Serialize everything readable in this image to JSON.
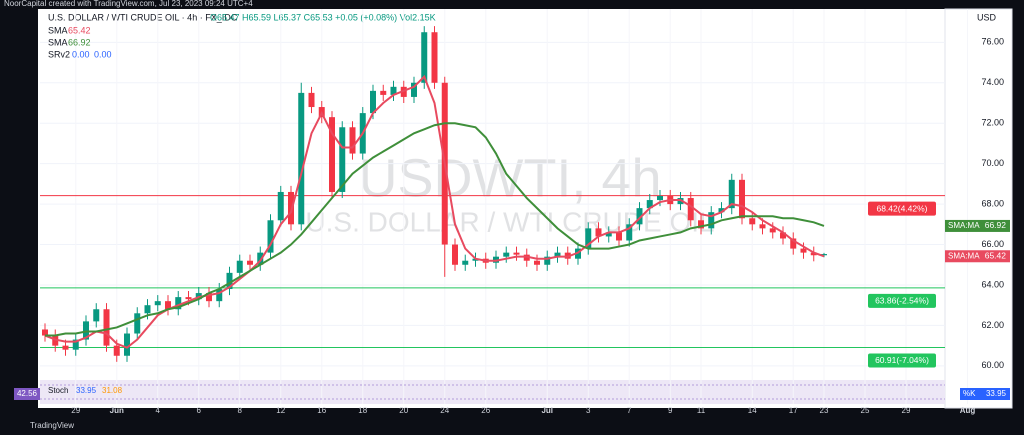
{
  "top_note": "NoorCapital created with TradingView.com, Jul 23, 2023 09:24 UTC+4",
  "footer_brand": "TradingView",
  "chart_data": {
    "type": "candlestick",
    "header": "U.S. DOLLAR / WTI CRUDE OIL · 4h · FX_IDC",
    "quote": "O65.47 H65.59 L65.37 C65.53 +0.05 (+0.08%) Vol2.15K",
    "watermark": {
      "title": "USDWTI, 4h",
      "subtitle": "U.S. DOLLAR / WTI CRUDE OIL"
    },
    "y_axis_label": "USD",
    "categories": [
      null,
      null,
      null,
      "29",
      null,
      null,
      null,
      "Jun",
      null,
      null,
      null,
      "4",
      null,
      null,
      null,
      "6",
      null,
      null,
      null,
      "8",
      null,
      null,
      null,
      "12",
      null,
      null,
      null,
      "16",
      null,
      null,
      null,
      "18",
      null,
      null,
      null,
      "20",
      null,
      null,
      null,
      "24",
      null,
      null,
      null,
      "26",
      null,
      null,
      null,
      null,
      null,
      "Jul",
      null,
      null,
      null,
      "3",
      null,
      null,
      null,
      "7",
      null,
      null,
      null,
      "9",
      null,
      null,
      "11",
      null,
      null,
      null,
      null,
      "14",
      null,
      null,
      null,
      "17",
      null,
      null,
      "23",
      null,
      null,
      null,
      "25",
      null,
      null,
      null,
      "29",
      null,
      null,
      null,
      null,
      null,
      "Aug"
    ],
    "open": [
      61.8,
      61.5,
      61.0,
      60.8,
      61.3,
      62.2,
      62.8,
      61.0,
      60.5,
      61.6,
      62.6,
      63.0,
      63.2,
      62.8,
      63.4,
      63.3,
      63.6,
      63.2,
      63.8,
      64.6,
      65.2,
      65.0,
      65.6,
      67.2,
      68.6,
      67.0,
      73.5,
      72.8,
      72.3,
      68.6,
      71.8,
      70.5,
      72.5,
      73.6,
      73.4,
      73.8,
      73.3,
      74.0,
      76.5,
      74.0,
      66.0,
      65.0,
      65.2,
      65.3,
      65.1,
      65.4,
      65.6,
      65.5,
      65.2,
      65.0,
      65.4,
      65.6,
      65.3,
      65.8,
      66.8,
      66.4,
      66.6,
      66.2,
      67.0,
      67.8,
      68.2,
      68.4,
      68.0,
      68.3,
      67.2,
      66.8,
      67.6,
      67.8,
      69.2,
      67.3,
      67.0,
      66.8,
      66.6,
      66.3,
      65.8,
      65.6,
      65.47,
      null,
      null,
      null,
      null,
      null,
      null,
      null,
      null,
      null,
      null,
      null,
      null,
      null,
      null
    ],
    "high": [
      62.1,
      61.8,
      61.3,
      61.6,
      62.5,
      63.1,
      63.1,
      61.3,
      61.9,
      62.9,
      63.3,
      63.5,
      63.5,
      63.7,
      63.7,
      63.9,
      63.9,
      64.1,
      64.9,
      65.5,
      65.5,
      65.9,
      67.5,
      68.9,
      68.9,
      74.0,
      73.8,
      73.1,
      72.6,
      72.1,
      72.1,
      72.8,
      73.9,
      73.9,
      74.1,
      74.1,
      74.3,
      76.8,
      76.8,
      74.3,
      66.3,
      65.5,
      65.6,
      65.6,
      65.7,
      65.9,
      65.9,
      65.8,
      65.5,
      65.7,
      65.9,
      65.9,
      66.1,
      67.1,
      67.1,
      66.9,
      66.9,
      67.3,
      68.1,
      68.5,
      68.7,
      68.7,
      68.6,
      68.6,
      67.5,
      67.9,
      68.1,
      69.5,
      69.5,
      67.6,
      67.3,
      67.1,
      66.9,
      66.6,
      66.1,
      65.9,
      65.59,
      null,
      null,
      null,
      null,
      null,
      null,
      null,
      null,
      null,
      null,
      null,
      null,
      null,
      null
    ],
    "low": [
      61.2,
      60.7,
      60.5,
      60.5,
      61.0,
      61.9,
      60.7,
      60.2,
      60.2,
      61.3,
      62.3,
      62.7,
      62.5,
      62.5,
      63.0,
      63.0,
      62.9,
      62.9,
      63.5,
      64.3,
      64.7,
      64.7,
      65.3,
      66.9,
      66.7,
      66.7,
      72.5,
      72.0,
      68.3,
      68.3,
      70.2,
      70.2,
      72.2,
      73.1,
      73.1,
      73.0,
      73.0,
      73.7,
      73.7,
      64.4,
      64.7,
      64.7,
      64.9,
      64.8,
      64.8,
      65.1,
      65.2,
      64.9,
      64.7,
      64.7,
      65.1,
      65.0,
      65.0,
      65.5,
      66.1,
      66.1,
      65.9,
      65.9,
      66.7,
      67.5,
      67.9,
      67.7,
      67.7,
      66.9,
      66.5,
      66.5,
      67.3,
      67.5,
      67.0,
      66.7,
      66.5,
      66.3,
      66.0,
      65.5,
      65.3,
      65.17,
      65.37,
      null,
      null,
      null,
      null,
      null,
      null,
      null,
      null,
      null,
      null,
      null,
      null,
      null,
      null
    ],
    "close": [
      61.5,
      61.0,
      60.8,
      61.3,
      62.2,
      62.8,
      61.0,
      60.5,
      61.6,
      62.6,
      63.0,
      63.2,
      62.8,
      63.4,
      63.3,
      63.6,
      63.2,
      63.8,
      64.6,
      65.2,
      65.0,
      65.6,
      67.2,
      68.6,
      67.0,
      73.5,
      72.8,
      72.3,
      68.6,
      71.8,
      70.5,
      72.5,
      73.6,
      73.4,
      73.8,
      73.3,
      74.0,
      76.5,
      74.0,
      66.0,
      65.0,
      65.2,
      65.3,
      65.1,
      65.4,
      65.6,
      65.5,
      65.2,
      65.0,
      65.4,
      65.6,
      65.3,
      65.8,
      66.8,
      66.4,
      66.6,
      66.2,
      67.0,
      67.8,
      68.2,
      68.4,
      68.0,
      68.3,
      67.2,
      66.8,
      67.6,
      67.8,
      69.2,
      67.3,
      67.0,
      66.8,
      66.6,
      66.3,
      65.8,
      65.6,
      65.47,
      65.53,
      null,
      null,
      null,
      null,
      null,
      null,
      null,
      null,
      null,
      null,
      null,
      null,
      null,
      null
    ],
    "up_color": "#089981",
    "down_color": "#f23645",
    "series": [
      {
        "name": "SMA",
        "tag": "SMA:MA",
        "color": "#e84a5f",
        "values": [
          61.5,
          61.3,
          61.2,
          61.2,
          61.4,
          61.7,
          61.6,
          61.1,
          60.9,
          61.3,
          61.9,
          62.5,
          62.8,
          63.0,
          63.2,
          63.4,
          63.5,
          63.6,
          63.9,
          64.3,
          64.7,
          65.2,
          66.0,
          67.0,
          67.6,
          69.5,
          71.5,
          72.5,
          71.5,
          70.8,
          70.8,
          71.5,
          72.5,
          73.0,
          73.4,
          73.6,
          73.8,
          74.3,
          73.0,
          70.0,
          67.0,
          65.8,
          65.3,
          65.2,
          65.2,
          65.3,
          65.4,
          65.4,
          65.3,
          65.3,
          65.4,
          65.4,
          65.6,
          66.0,
          66.4,
          66.6,
          66.6,
          66.8,
          67.3,
          67.8,
          68.1,
          68.2,
          68.2,
          67.9,
          67.5,
          67.4,
          67.6,
          68.0,
          67.9,
          67.6,
          67.2,
          66.9,
          66.6,
          66.2,
          65.9,
          65.6,
          65.42,
          null,
          null,
          null,
          null,
          null,
          null,
          null,
          null,
          null,
          null,
          null,
          null,
          null,
          null
        ]
      },
      {
        "name": "SMA",
        "tag": "SMA:MA",
        "color": "#3f8f3a",
        "values": [
          61.5,
          61.5,
          61.6,
          61.6,
          61.7,
          61.7,
          61.8,
          61.9,
          62.1,
          62.3,
          62.5,
          62.6,
          62.8,
          62.9,
          63.1,
          63.3,
          63.6,
          63.8,
          64.1,
          64.4,
          64.7,
          65.0,
          65.3,
          65.6,
          66.0,
          66.5,
          67.1,
          67.7,
          68.3,
          68.9,
          69.5,
          69.9,
          70.3,
          70.6,
          70.9,
          71.2,
          71.5,
          71.7,
          71.9,
          72.0,
          72.0,
          71.9,
          71.8,
          71.3,
          70.5,
          69.5,
          68.9,
          68.3,
          67.8,
          67.3,
          66.8,
          66.4,
          66.0,
          65.8,
          65.8,
          65.8,
          65.9,
          66.0,
          66.2,
          66.3,
          66.4,
          66.5,
          66.6,
          66.8,
          66.9,
          67.0,
          67.2,
          67.3,
          67.4,
          67.4,
          67.4,
          67.4,
          67.3,
          67.3,
          67.2,
          67.1,
          66.92,
          null,
          null,
          null,
          null,
          null,
          null,
          null,
          null,
          null,
          null,
          null,
          null,
          null,
          null
        ]
      }
    ],
    "indicator": {
      "name": "SRv2",
      "values": [
        0,
        0
      ],
      "value_labels": [
        "0.00",
        "0.00"
      ]
    },
    "levels": [
      {
        "value": 68.42,
        "label": "68.42(4.42%)",
        "color": "#f23645"
      },
      {
        "value": 63.86,
        "label": "63.86(-2.54%)",
        "color": "#22c55e"
      },
      {
        "value": 60.91,
        "label": "60.91(-7.04%)",
        "color": "#22c55e"
      }
    ],
    "stoch": {
      "name": "Stoch",
      "values": [
        33.95,
        31.08
      ],
      "tag": "%K"
    },
    "rsi": {
      "name": "RSI",
      "value": 42.56
    },
    "ylim": [
      59.4,
      77.5
    ],
    "yticks": [
      {
        "value": 60,
        "label": "60.00"
      },
      {
        "value": 62,
        "label": "62.00"
      },
      {
        "value": 64,
        "label": "64.00"
      },
      {
        "value": 66,
        "label": "66.00"
      },
      {
        "value": 68,
        "label": "68.00"
      },
      {
        "value": 70,
        "label": "70.00"
      },
      {
        "value": 72,
        "label": "72.00"
      },
      {
        "value": 74,
        "label": "74.00"
      },
      {
        "value": 76,
        "label": "76.00"
      }
    ]
  }
}
